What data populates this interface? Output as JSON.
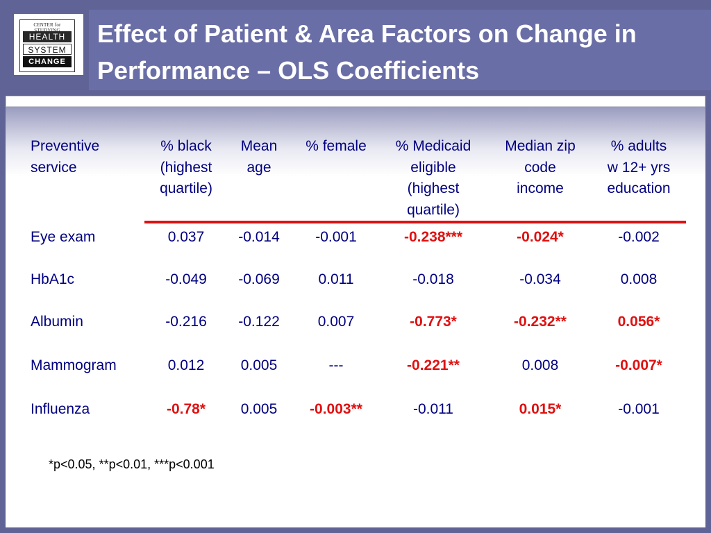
{
  "logo": {
    "top_text": "CENTER for STUDYING",
    "line1": "HEALTH",
    "line2": "SYSTEM",
    "line3": "CHANGE"
  },
  "title": "Effect of Patient & Area Factors on Change in Performance – OLS Coefficients",
  "colors": {
    "header_bg": "#5f6396",
    "text": "#000080",
    "significant": "#e01010",
    "rule": "#e01010"
  },
  "table": {
    "headers": [
      "Preventive service",
      "% black (highest quartile)",
      "Mean age",
      "% female",
      "% Medicaid eligible (highest quartile)",
      "Median zip code income",
      "% adults w 12+ yrs education"
    ],
    "header_lines": [
      [
        "Preventive",
        "service"
      ],
      [
        "% black",
        "(highest",
        "quartile)"
      ],
      [
        "Mean",
        "age"
      ],
      [
        "% female"
      ],
      [
        "% Medicaid",
        "eligible",
        "(highest",
        "quartile)"
      ],
      [
        "Median zip",
        "code",
        "income"
      ],
      [
        "% adults",
        "w 12+ yrs",
        "education"
      ]
    ],
    "rows": [
      {
        "label": "Eye exam",
        "values": [
          "0.037",
          "-0.014",
          "-0.001",
          "-0.238***",
          "-0.024*",
          "-0.002"
        ],
        "significant": [
          false,
          false,
          false,
          true,
          true,
          false
        ]
      },
      {
        "label": "HbA1c",
        "values": [
          "-0.049",
          "-0.069",
          "0.011",
          "-0.018",
          "-0.034",
          "0.008"
        ],
        "significant": [
          false,
          false,
          false,
          false,
          false,
          false
        ]
      },
      {
        "label": "Albumin",
        "values": [
          "-0.216",
          "-0.122",
          "0.007",
          "-0.773*",
          "-0.232**",
          "0.056*"
        ],
        "significant": [
          false,
          false,
          false,
          true,
          true,
          true
        ]
      },
      {
        "label": "Mammogram",
        "values": [
          "0.012",
          "0.005",
          "---",
          "-0.221**",
          "0.008",
          "-0.007*"
        ],
        "significant": [
          false,
          false,
          false,
          true,
          false,
          true
        ]
      },
      {
        "label": "Influenza",
        "values": [
          "-0.78*",
          "0.005",
          "-0.003**",
          "-0.011",
          "0.015*",
          "-0.001"
        ],
        "significant": [
          true,
          false,
          true,
          false,
          true,
          false
        ]
      }
    ]
  },
  "footnote": "*p<0.05, **p<0.01, ***p<0.001"
}
